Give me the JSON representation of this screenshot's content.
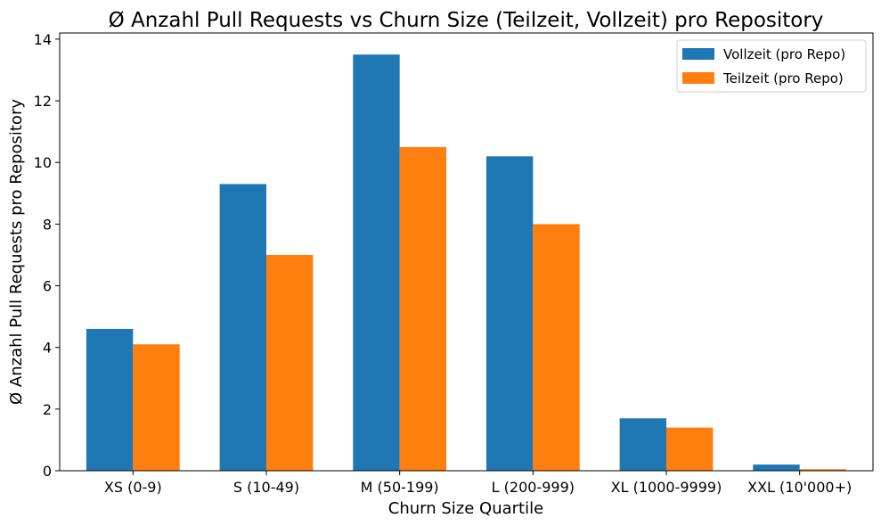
{
  "chart_data": {
    "type": "bar",
    "title": "Ø Anzahl Pull Requests vs Churn Size (Teilzeit, Vollzeit) pro Repository",
    "xlabel": "Churn Size Quartile",
    "ylabel": "Ø Anzahl Pull Requests pro Repository",
    "categories": [
      "XS (0-9)",
      "S (10-49)",
      "M (50-199)",
      "L (200-999)",
      "XL (1000-9999)",
      "XXL (10'000+)"
    ],
    "series": [
      {
        "name": "Vollzeit (pro Repo)",
        "color": "#1f77b4",
        "values": [
          4.6,
          9.3,
          13.5,
          10.2,
          1.7,
          0.2
        ]
      },
      {
        "name": "Teilzeit (pro Repo)",
        "color": "#ff7f0e",
        "values": [
          4.1,
          7.0,
          10.5,
          8.0,
          1.4,
          0.05
        ]
      }
    ],
    "ylim": [
      0,
      14.2
    ],
    "yticks": [
      0,
      2,
      4,
      6,
      8,
      10,
      12,
      14
    ],
    "legend_position": "top-right",
    "grid": false
  }
}
